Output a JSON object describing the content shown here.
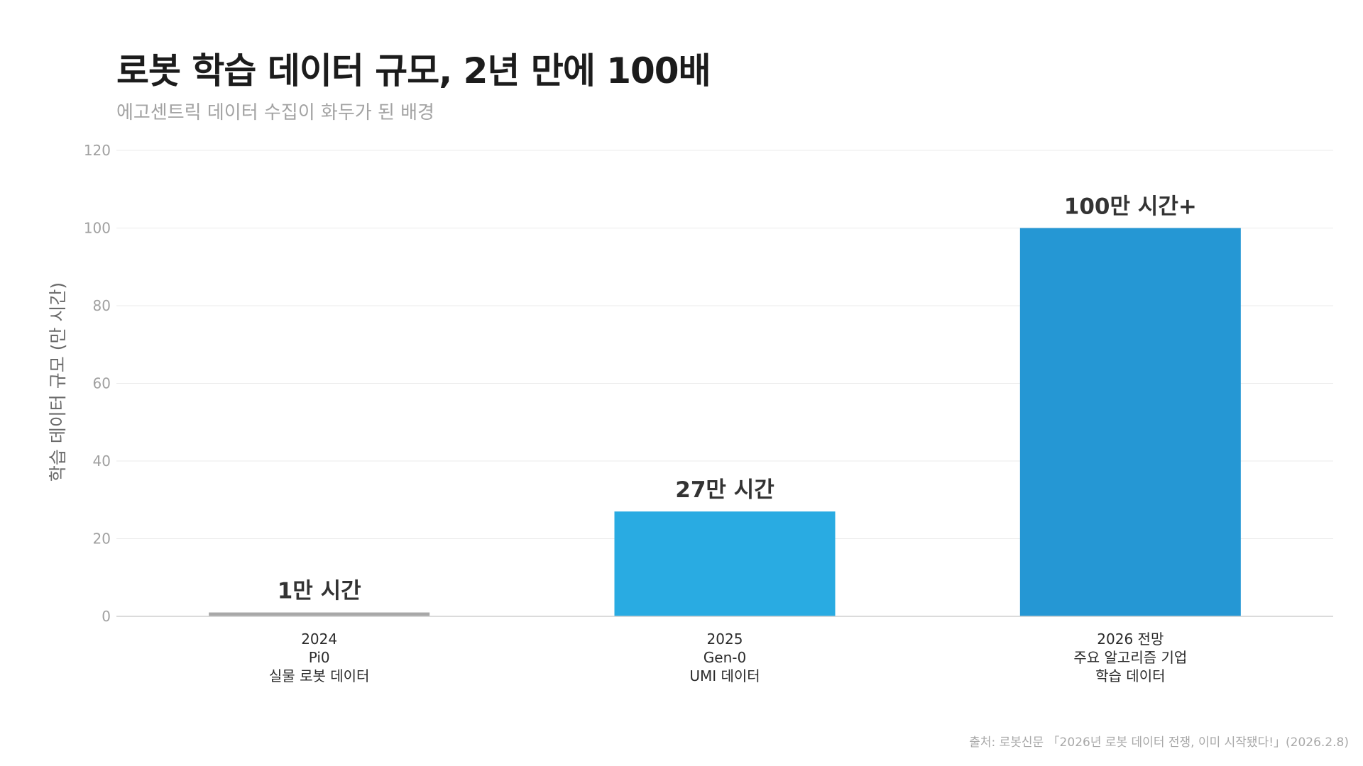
{
  "title": "로봇 학습 데이터 규모, 2년 만에 100배",
  "subtitle": "에고센트릭 데이터 수집이 화두가 된 배경",
  "source": "출처: 로봇신문 「2026년 로봇 데이터 전쟁, 이미 시작됐다!」(2026.2.8)",
  "chart_data": {
    "type": "bar",
    "ylabel": "학습 데이터 규모 (만 시간)",
    "xlabel": "",
    "ylim": [
      0,
      120
    ],
    "yticks": [
      0,
      20,
      40,
      60,
      80,
      100,
      120
    ],
    "grid": true,
    "categories": [
      [
        "2024",
        "Pi0",
        "실물 로봇 데이터"
      ],
      [
        "2025",
        "Gen-0",
        "UMI 데이터"
      ],
      [
        "2026 전망",
        "주요 알고리즘 기업",
        "학습 데이터"
      ]
    ],
    "values": [
      1,
      27,
      100
    ],
    "data_labels": [
      "1만 시간",
      "27만 시간",
      "100만 시간+"
    ],
    "colors": [
      "#a8a8a8",
      "#29abe2",
      "#2597d4"
    ]
  }
}
